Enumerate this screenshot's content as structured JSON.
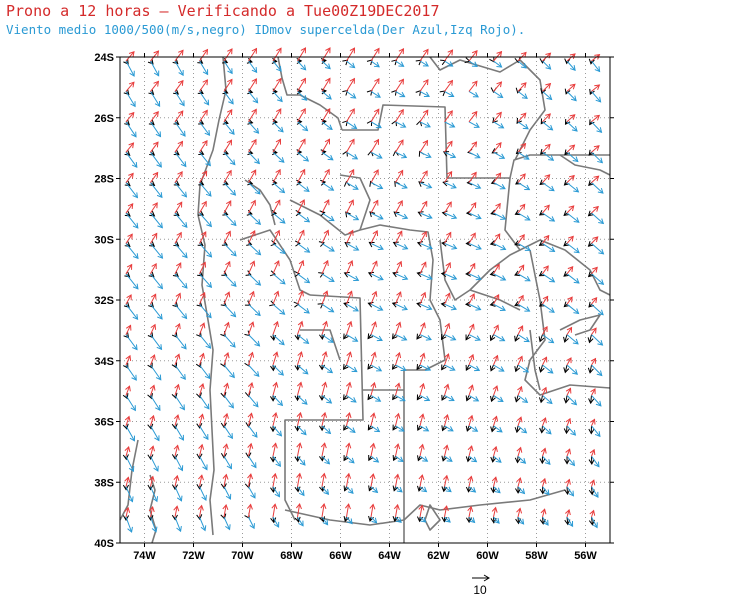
{
  "title": {
    "line1": "Prono a 12 horas – Verificando a Tue00Z19DEC2017",
    "line2": "Viento medio 1000/500(m/s,negro) IDmov supercelda(Der Azul,Izq Rojo)."
  },
  "axes": {
    "lat_labels": [
      "24S",
      "26S",
      "28S",
      "30S",
      "32S",
      "34S",
      "36S",
      "38S",
      "40S"
    ],
    "lon_labels": [
      "74W",
      "72W",
      "70W",
      "68W",
      "66W",
      "64W",
      "62W",
      "60W",
      "58W",
      "56W"
    ]
  },
  "legend": {
    "reference_label": "10"
  },
  "colors": {
    "mean_wind": "#000000",
    "right_mover": "#2a9ad4",
    "left_mover": "#e83c3c",
    "borders": "#7a7a7a",
    "grid": "#9a9a9a"
  },
  "chart_data": {
    "type": "vector_map",
    "lon_range": [
      -75,
      -55
    ],
    "lat_range": [
      -40,
      -24
    ],
    "grid": "dotted every 2 degrees",
    "series_names": [
      "Viento medio 1000/500 (negro)",
      "IDmov supercelda Der (Azul)",
      "IDmov supercelda Izq (Rojo)"
    ]
  }
}
